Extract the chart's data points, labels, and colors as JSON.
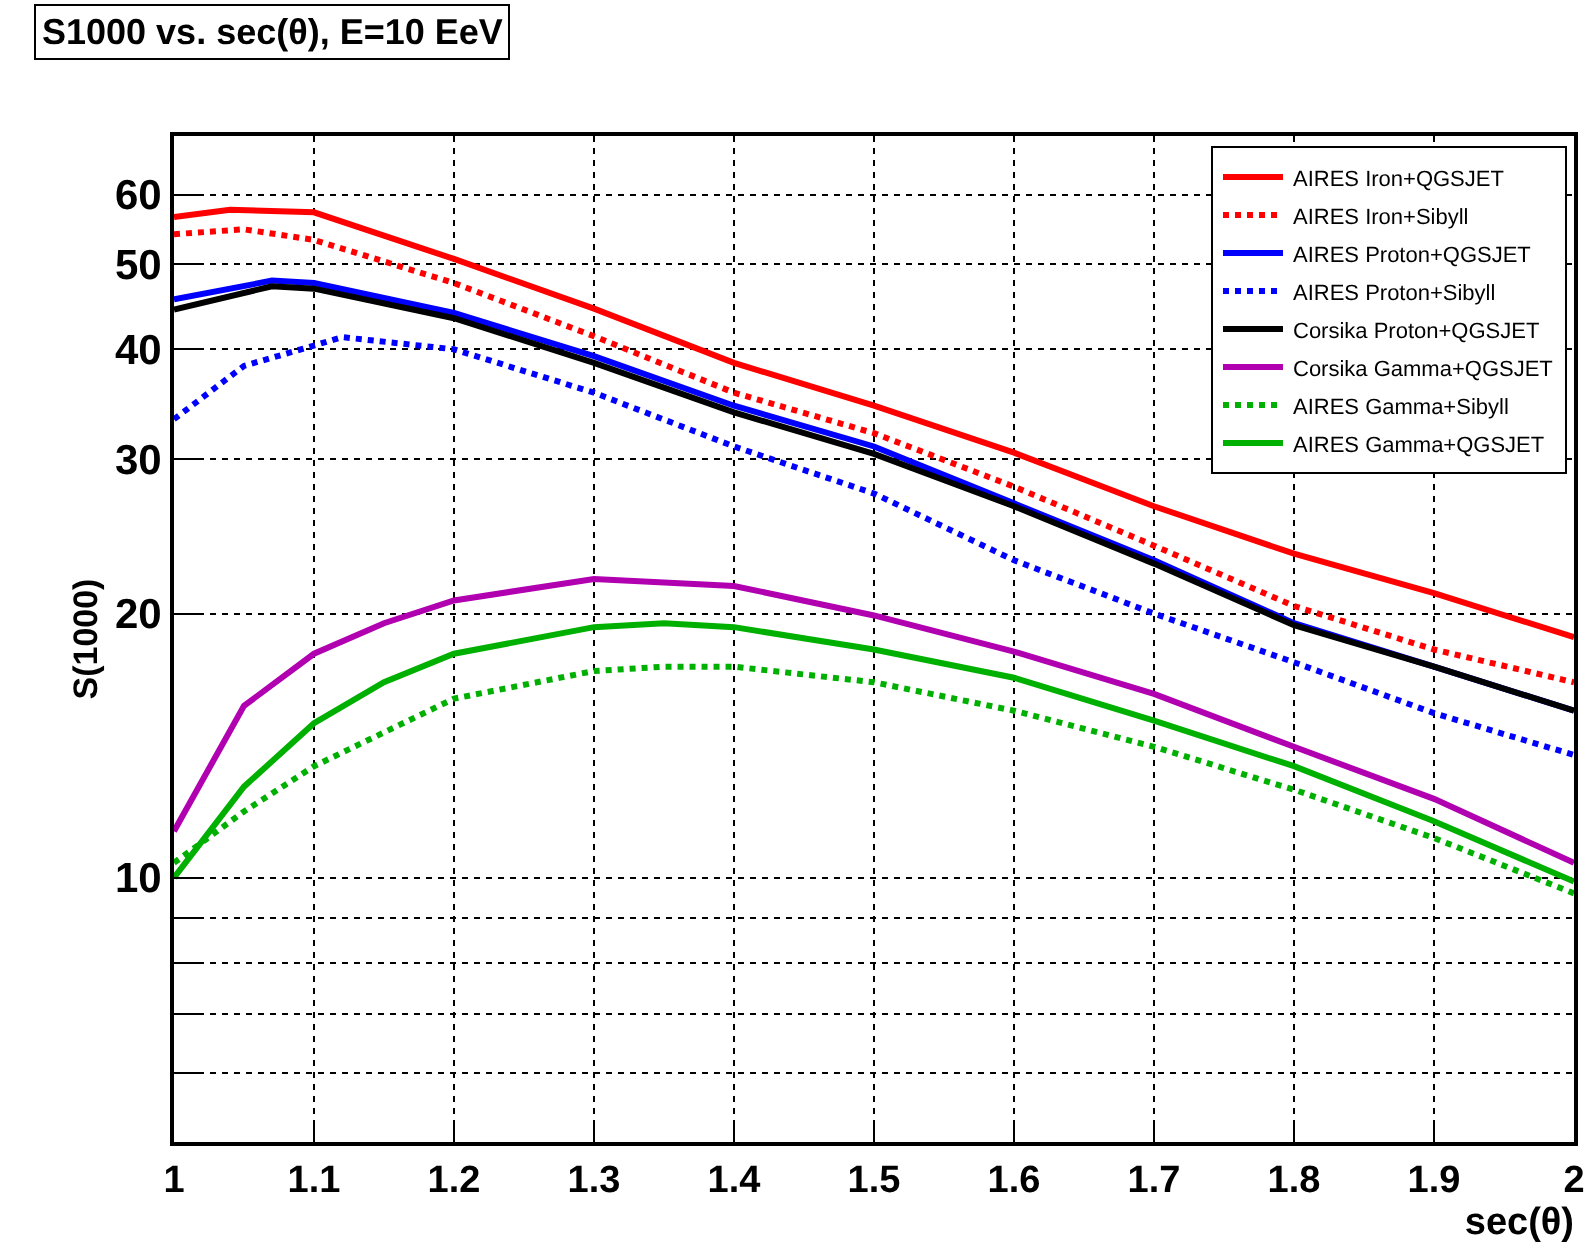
{
  "chart_data": {
    "type": "line",
    "title": "S1000 vs. sec(θ), E=10 EeV",
    "xlabel": "sec(θ)",
    "ylabel": "S(1000)",
    "log": "y",
    "grid": true,
    "legend": "top right",
    "marker": "none",
    "xlim": [
      1,
      2
    ],
    "xticks": [
      1,
      1.1,
      1.2,
      1.3,
      1.4,
      1.5,
      1.6,
      1.7,
      1.8,
      1.9,
      2
    ],
    "ylim": [
      5,
      70
    ],
    "yticks": [
      {
        "value": 6,
        "label": null
      },
      {
        "value": 7,
        "label": null
      },
      {
        "value": 8,
        "label": null
      },
      {
        "value": 9,
        "label": null
      },
      10,
      20,
      30,
      40,
      50,
      60
    ],
    "series": [
      {
        "name": "AIRES Iron+QGSJET",
        "color": "#ff0000",
        "line_style": "solid",
        "x": [
          1,
          1.04,
          1.1,
          1.2,
          1.3,
          1.4,
          1.5,
          1.6,
          1.7,
          1.8,
          1.9,
          2
        ],
        "values": [
          56.6,
          57.7,
          57.3,
          50.7,
          44.5,
          38.6,
          34.5,
          30.5,
          26.5,
          23.4,
          21.1,
          18.8
        ]
      },
      {
        "name": "AIRES Iron+Sibyll",
        "color": "#ff0000",
        "line_style": "dotted",
        "x": [
          1,
          1.05,
          1.1,
          1.2,
          1.3,
          1.4,
          1.5,
          1.6,
          1.7,
          1.8,
          1.9,
          2
        ],
        "values": [
          54.1,
          54.8,
          53.3,
          47.6,
          41.4,
          35.7,
          32.1,
          27.9,
          23.9,
          20.4,
          18.2,
          16.7
        ]
      },
      {
        "name": "AIRES Proton+QGSJET",
        "color": "#0000ff",
        "line_style": "solid",
        "x": [
          1,
          1.07,
          1.1,
          1.2,
          1.3,
          1.4,
          1.5,
          1.6,
          1.7,
          1.8,
          1.9,
          2
        ],
        "values": [
          45.6,
          47.9,
          47.6,
          44.0,
          39.3,
          34.5,
          31.0,
          26.7,
          23.0,
          19.5,
          17.4,
          15.5
        ]
      },
      {
        "name": "AIRES Proton+Sibyll",
        "color": "#0000ff",
        "line_style": "dotted",
        "x": [
          1,
          1.05,
          1.1,
          1.12,
          1.2,
          1.3,
          1.4,
          1.5,
          1.6,
          1.7,
          1.8,
          1.9,
          2
        ],
        "values": [
          33.3,
          38.3,
          40.4,
          41.3,
          40.0,
          35.7,
          31.0,
          27.4,
          23.0,
          20.0,
          17.6,
          15.4,
          13.8
        ]
      },
      {
        "name": "Corsika Proton+QGSJET",
        "color": "#000000",
        "line_style": "solid",
        "x": [
          1,
          1.07,
          1.1,
          1.2,
          1.3,
          1.4,
          1.5,
          1.6,
          1.7,
          1.8,
          1.9,
          2
        ],
        "values": [
          44.4,
          47.2,
          46.9,
          43.4,
          38.6,
          33.9,
          30.4,
          26.5,
          22.8,
          19.4,
          17.4,
          15.5
        ]
      },
      {
        "name": "Corsika Gamma+QGSJET",
        "color": "#b000b0",
        "line_style": "solid",
        "x": [
          1,
          1.05,
          1.1,
          1.15,
          1.2,
          1.3,
          1.4,
          1.5,
          1.6,
          1.7,
          1.8,
          1.9,
          2
        ],
        "values": [
          11.3,
          15.7,
          18.0,
          19.5,
          20.7,
          21.9,
          21.5,
          19.9,
          18.1,
          16.2,
          14.1,
          12.3,
          10.4
        ]
      },
      {
        "name": "AIRES Gamma+Sibyll",
        "color": "#00b000",
        "line_style": "dotted",
        "x": [
          1,
          1.05,
          1.1,
          1.2,
          1.3,
          1.35,
          1.4,
          1.5,
          1.6,
          1.7,
          1.8,
          1.9,
          2
        ],
        "values": [
          10.4,
          11.9,
          13.4,
          16.0,
          17.2,
          17.4,
          17.4,
          16.7,
          15.5,
          14.1,
          12.6,
          11.1,
          9.6
        ]
      },
      {
        "name": "AIRES Gamma+QGSJET",
        "color": "#00b000",
        "line_style": "solid",
        "x": [
          1,
          1.05,
          1.1,
          1.15,
          1.2,
          1.3,
          1.35,
          1.4,
          1.5,
          1.6,
          1.7,
          1.8,
          1.9,
          2
        ],
        "values": [
          10.0,
          12.7,
          15.0,
          16.7,
          18.0,
          19.3,
          19.5,
          19.3,
          18.2,
          16.9,
          15.1,
          13.4,
          11.6,
          9.9
        ]
      }
    ]
  }
}
